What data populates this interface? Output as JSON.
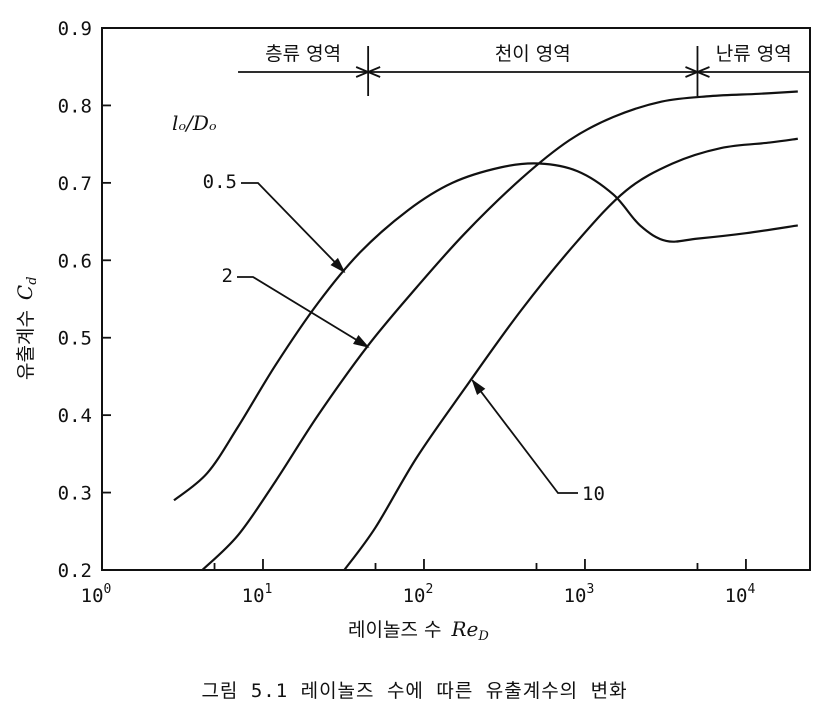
{
  "chart_data": {
    "type": "line",
    "xlabel": "레이놀즈 수",
    "xlabel_symbol": "Re",
    "xlabel_sub": "D",
    "ylabel": "유출계수",
    "ylabel_symbol": "C",
    "ylabel_sub": "d",
    "xscale": "log",
    "xlim": [
      1,
      25000
    ],
    "ylim": [
      0.2,
      0.9
    ],
    "x_ticks": [
      {
        "value": 1,
        "base": "10",
        "exp": "0"
      },
      {
        "value": 10,
        "base": "10",
        "exp": "1"
      },
      {
        "value": 100,
        "base": "10",
        "exp": "2"
      },
      {
        "value": 1000,
        "base": "10",
        "exp": "3"
      },
      {
        "value": 10000,
        "base": "10",
        "exp": "4"
      }
    ],
    "y_ticks": [
      {
        "value": 0.2,
        "label": "0.2"
      },
      {
        "value": 0.3,
        "label": "0.3"
      },
      {
        "value": 0.4,
        "label": "0.4"
      },
      {
        "value": 0.5,
        "label": "0.5"
      },
      {
        "value": 0.6,
        "label": "0.6"
      },
      {
        "value": 0.7,
        "label": "0.7"
      },
      {
        "value": 0.8,
        "label": "0.8"
      },
      {
        "value": 0.9,
        "label": "0.9"
      }
    ],
    "legend_title": "lₒ/Dₒ",
    "regions": [
      {
        "label": "층류 영역",
        "from": 7,
        "to": 45
      },
      {
        "label": "천이 영역",
        "from": 45,
        "to": 5000
      },
      {
        "label": "난류 영역",
        "from": 5000,
        "to": 25000
      }
    ],
    "series": [
      {
        "name": "0.5",
        "points": [
          [
            2.8,
            0.29
          ],
          [
            4.5,
            0.325
          ],
          [
            7,
            0.385
          ],
          [
            12,
            0.465
          ],
          [
            22,
            0.545
          ],
          [
            40,
            0.61
          ],
          [
            80,
            0.665
          ],
          [
            150,
            0.7
          ],
          [
            300,
            0.72
          ],
          [
            520,
            0.725
          ],
          [
            900,
            0.715
          ],
          [
            1500,
            0.685
          ],
          [
            2200,
            0.645
          ],
          [
            3200,
            0.625
          ],
          [
            5000,
            0.628
          ],
          [
            10000,
            0.635
          ],
          [
            21000,
            0.645
          ]
        ]
      },
      {
        "name": "2",
        "points": [
          [
            4.2,
            0.2
          ],
          [
            7,
            0.245
          ],
          [
            12,
            0.315
          ],
          [
            22,
            0.4
          ],
          [
            45,
            0.49
          ],
          [
            90,
            0.565
          ],
          [
            180,
            0.635
          ],
          [
            400,
            0.705
          ],
          [
            800,
            0.755
          ],
          [
            1500,
            0.785
          ],
          [
            3000,
            0.805
          ],
          [
            6000,
            0.812
          ],
          [
            12000,
            0.815
          ],
          [
            21000,
            0.818
          ]
        ]
      },
      {
        "name": "10",
        "points": [
          [
            32,
            0.2
          ],
          [
            50,
            0.255
          ],
          [
            90,
            0.345
          ],
          [
            180,
            0.435
          ],
          [
            400,
            0.535
          ],
          [
            900,
            0.625
          ],
          [
            1800,
            0.69
          ],
          [
            3500,
            0.725
          ],
          [
            7000,
            0.745
          ],
          [
            14000,
            0.752
          ],
          [
            21000,
            0.757
          ]
        ]
      }
    ],
    "curve_labels": [
      {
        "series": "0.5",
        "label": "0.5"
      },
      {
        "series": "2",
        "label": "2"
      },
      {
        "series": "10",
        "label": "10"
      }
    ],
    "grid": false
  },
  "caption": "그림 5.1  레이놀즈 수에 따른 유출계수의 변화"
}
